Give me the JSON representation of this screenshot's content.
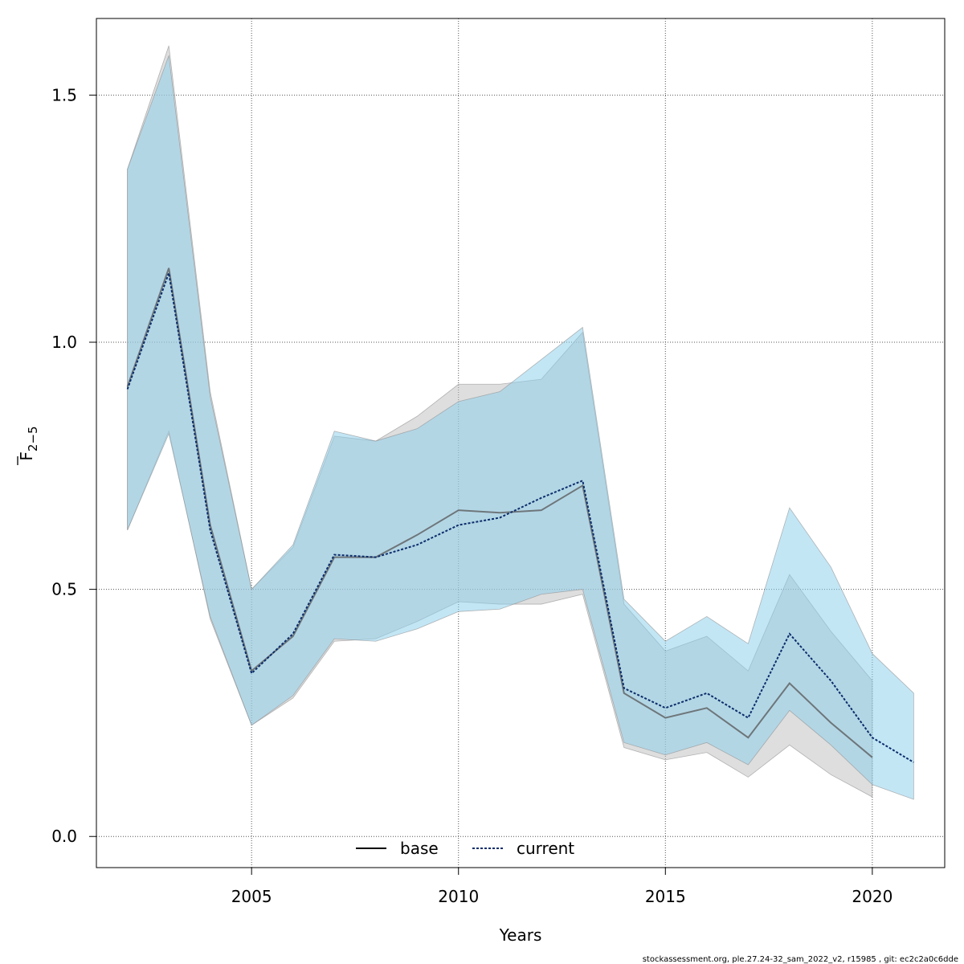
{
  "chart_data": {
    "type": "line",
    "title": "",
    "xlabel": "Years",
    "ylabel_main": "F",
    "ylabel_sub": "2−5",
    "xlim": [
      2001.25,
      2021.75
    ],
    "ylim": [
      -0.063,
      1.655
    ],
    "xticks": [
      2005,
      2010,
      2015,
      2020
    ],
    "xtick_labels": [
      "2005",
      "2010",
      "2015",
      "2020"
    ],
    "yticks": [
      0.0,
      0.5,
      1.0,
      1.5
    ],
    "ytick_labels": [
      "0.0",
      "0.5",
      "1.0",
      "1.5"
    ],
    "grid": true,
    "legend_placement": "bottom-center",
    "series": [
      {
        "name": "base",
        "line_style": "solid",
        "line_color": "#555555",
        "band_color": "#bebebe",
        "x": [
          2002,
          2003,
          2004,
          2005,
          2006,
          2007,
          2008,
          2009,
          2010,
          2011,
          2012,
          2013,
          2014,
          2015,
          2016,
          2017,
          2018,
          2019,
          2020
        ],
        "values": [
          0.91,
          1.15,
          0.63,
          0.335,
          0.405,
          0.565,
          0.565,
          0.61,
          0.66,
          0.655,
          0.66,
          0.71,
          0.29,
          0.24,
          0.26,
          0.2,
          0.31,
          0.23,
          0.16
        ],
        "lower": [
          0.62,
          0.82,
          0.44,
          0.225,
          0.28,
          0.395,
          0.4,
          0.435,
          0.475,
          0.47,
          0.47,
          0.49,
          0.18,
          0.155,
          0.17,
          0.12,
          0.185,
          0.125,
          0.08
        ],
        "upper": [
          1.35,
          1.6,
          0.9,
          0.5,
          0.585,
          0.81,
          0.8,
          0.85,
          0.915,
          0.915,
          0.925,
          1.02,
          0.47,
          0.375,
          0.405,
          0.335,
          0.53,
          0.415,
          0.315
        ]
      },
      {
        "name": "current",
        "line_style": "dotted",
        "line_color": "#0b2d6b",
        "band_color": "#87ceeb",
        "x": [
          2002,
          2003,
          2004,
          2005,
          2006,
          2007,
          2008,
          2009,
          2010,
          2011,
          2012,
          2013,
          2014,
          2015,
          2016,
          2017,
          2018,
          2019,
          2020,
          2021
        ],
        "values": [
          0.905,
          1.14,
          0.62,
          0.33,
          0.41,
          0.57,
          0.565,
          0.59,
          0.63,
          0.645,
          0.685,
          0.72,
          0.3,
          0.26,
          0.29,
          0.24,
          0.41,
          0.315,
          0.2,
          0.15
        ],
        "lower": [
          0.62,
          0.815,
          0.445,
          0.225,
          0.285,
          0.4,
          0.395,
          0.42,
          0.455,
          0.46,
          0.49,
          0.5,
          0.19,
          0.165,
          0.19,
          0.145,
          0.255,
          0.185,
          0.105,
          0.075
        ],
        "upper": [
          1.35,
          1.58,
          0.89,
          0.5,
          0.59,
          0.82,
          0.8,
          0.825,
          0.88,
          0.9,
          0.965,
          1.03,
          0.48,
          0.395,
          0.445,
          0.39,
          0.665,
          0.545,
          0.37,
          0.29
        ]
      }
    ]
  },
  "footer": "stockassessment.org, ple.27.24-32_sam_2022_v2, r15985 , git: ec2c2a0c6dde"
}
